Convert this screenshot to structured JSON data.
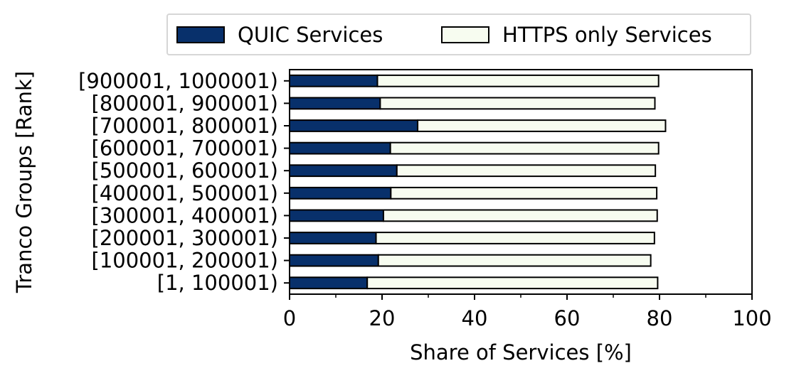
{
  "chart_data": {
    "type": "bar",
    "orientation": "horizontal",
    "stacked": true,
    "categories": [
      "[1, 100001)",
      "[100001, 200001)",
      "[200001, 300001)",
      "[300001, 400001)",
      "[400001, 500001)",
      "[500001, 600001)",
      "[600001, 700001)",
      "[700001, 800001)",
      "[800001, 900001)",
      "[900001, 1000001)"
    ],
    "series": [
      {
        "name": "QUIC Services",
        "color": "#08306b",
        "values": [
          16.8,
          19.2,
          18.7,
          20.3,
          21.9,
          23.2,
          21.8,
          27.7,
          19.6,
          19.0
        ]
      },
      {
        "name": "HTTPS only Services",
        "color": "#f7fcf0",
        "values": [
          62.8,
          58.9,
          60.2,
          59.2,
          57.5,
          55.9,
          58.0,
          53.6,
          59.4,
          60.8
        ]
      }
    ],
    "xlabel": "Share of Services [%]",
    "ylabel": "Tranco Groups [Rank]",
    "xlim": [
      0,
      100
    ],
    "xticks": [
      "0",
      "20",
      "40",
      "60",
      "80",
      "100"
    ],
    "grid": false,
    "legend_position": "top"
  }
}
